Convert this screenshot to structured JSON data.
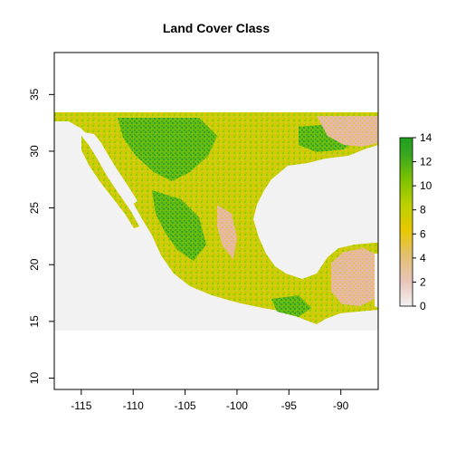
{
  "map": {
    "title": "Land Cover Class",
    "x_ticks": [
      "-115",
      "-110",
      "-105",
      "-100",
      "-95",
      "-90"
    ],
    "y_ticks": [
      "10",
      "15",
      "20",
      "25",
      "30",
      "35"
    ],
    "legend_ticks": [
      "0",
      "2",
      "4",
      "6",
      "8",
      "10",
      "12",
      "14"
    ],
    "x_values": [
      -115,
      -110,
      -105,
      -100,
      -95,
      -90
    ],
    "y_values": [
      10,
      15,
      20,
      25,
      30,
      35
    ],
    "legend_values": [
      0,
      2,
      4,
      6,
      8,
      10,
      12,
      14
    ],
    "xlim": [
      -117.6,
      -86.4
    ],
    "ylim": [
      9,
      38.7
    ],
    "raster_extent": {
      "lon": [
        -117.6,
        -86.4
      ],
      "lat": [
        14,
        33.1
      ]
    },
    "colors": {
      "ocean": "#f2f2f2",
      "legend_low": "#f2f2f2",
      "legend_mid": "#e8c800",
      "legend_high": "#1e9e1e",
      "forest": "#28a028",
      "cropland": "#c8d400",
      "shrub": "#d8c43a",
      "barren": "#e9b4a2"
    }
  }
}
